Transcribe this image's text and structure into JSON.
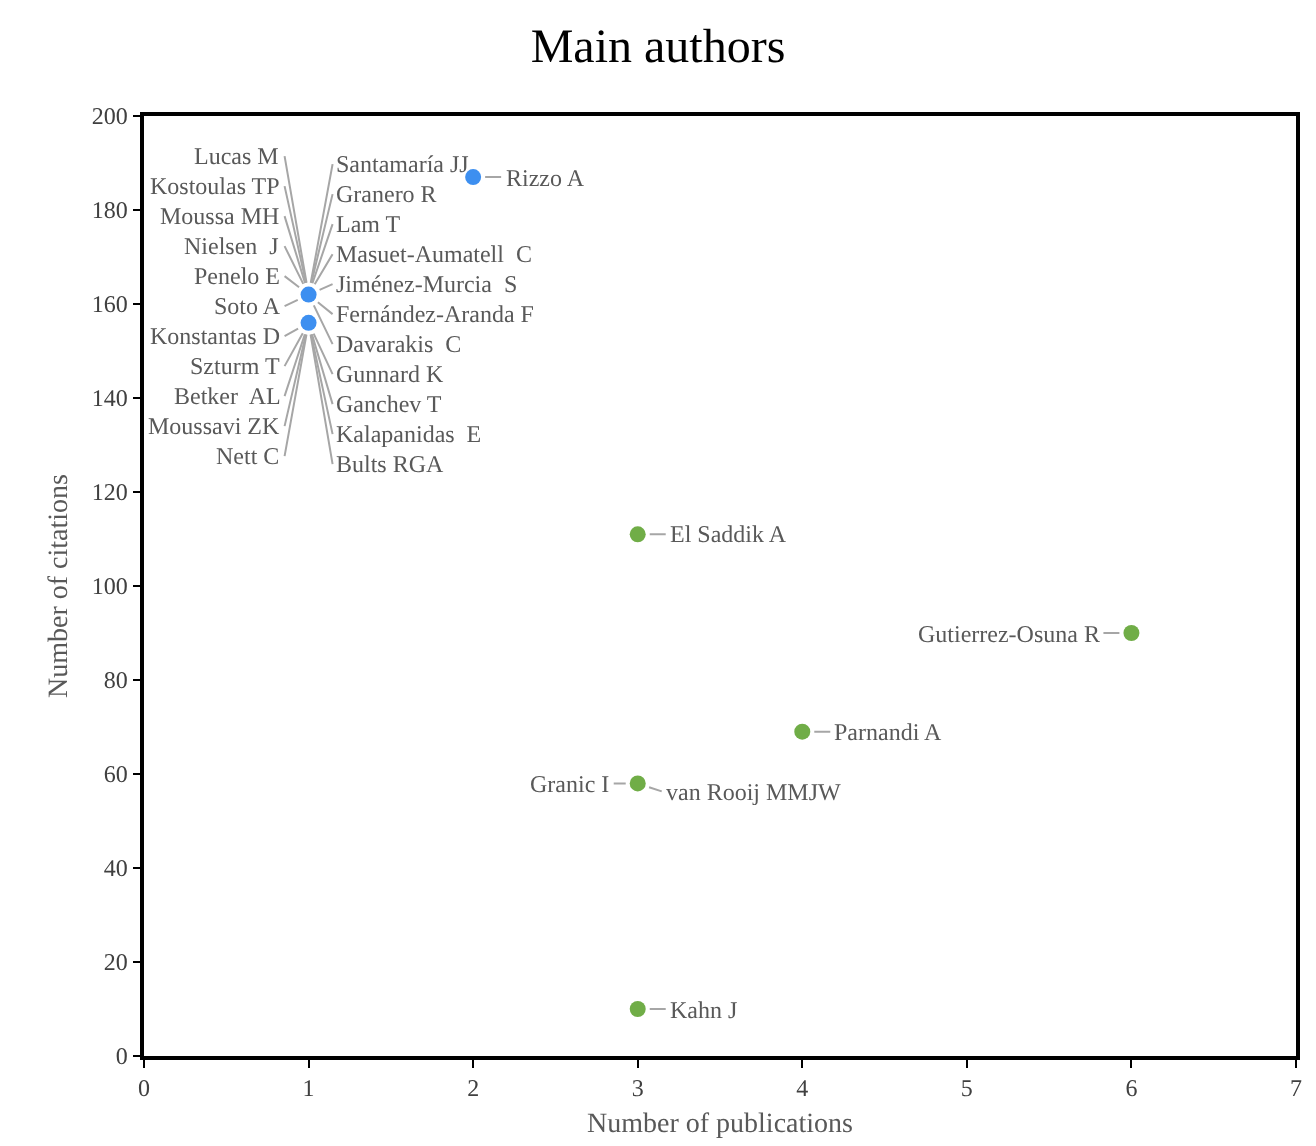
{
  "chart_data": {
    "type": "scatter",
    "title": "Main authors",
    "xlabel": "Number of publications",
    "ylabel": "Number of citations",
    "xlim": [
      0,
      7
    ],
    "xticks": [
      0,
      1,
      2,
      3,
      4,
      5,
      6,
      7
    ],
    "ylim": [
      0,
      200
    ],
    "yticks": [
      0,
      20,
      40,
      60,
      80,
      100,
      120,
      140,
      160,
      180,
      200
    ],
    "grid": false,
    "marker": "circle",
    "series": [
      {
        "color": "#3d8ff0",
        "x": [
          1,
          1,
          2
        ],
        "values": [
          162,
          156,
          187
        ]
      },
      {
        "color": "#70ad47",
        "x": [
          3,
          3,
          6,
          4,
          3
        ],
        "values": [
          111,
          58,
          90,
          69,
          10
        ]
      }
    ],
    "annotations": [
      {
        "text": "Lucas M",
        "x": 1,
        "y": 162
      },
      {
        "text": "Santamaría JJ",
        "x": 1,
        "y": 162
      },
      {
        "text": "Kostoulas TP",
        "x": 1,
        "y": 162
      },
      {
        "text": "Granero R",
        "x": 1,
        "y": 162
      },
      {
        "text": "Moussa MH",
        "x": 1,
        "y": 162
      },
      {
        "text": "Lam T",
        "x": 1,
        "y": 162
      },
      {
        "text": "Nielsen  J",
        "x": 1,
        "y": 162
      },
      {
        "text": "Masuet-Aumatell  C",
        "x": 1,
        "y": 162
      },
      {
        "text": "Penelo E",
        "x": 1,
        "y": 162
      },
      {
        "text": "Jiménez-Murcia  S",
        "x": 1,
        "y": 162
      },
      {
        "text": "Soto A",
        "x": 1,
        "y": 162
      },
      {
        "text": "Fernández-Aranda F",
        "x": 1,
        "y": 162
      },
      {
        "text": "Konstantas D",
        "x": 1,
        "y": 156
      },
      {
        "text": "Davarakis  C",
        "x": 1,
        "y": 162
      },
      {
        "text": "Szturm T",
        "x": 1,
        "y": 156
      },
      {
        "text": "Gunnard K",
        "x": 1,
        "y": 156
      },
      {
        "text": "Betker  AL",
        "x": 1,
        "y": 156
      },
      {
        "text": "Ganchev T",
        "x": 1,
        "y": 156
      },
      {
        "text": "Moussavi ZK",
        "x": 1,
        "y": 156
      },
      {
        "text": "Kalapanidas  E",
        "x": 1,
        "y": 156
      },
      {
        "text": "Nett C",
        "x": 1,
        "y": 156
      },
      {
        "text": "Bults RGA",
        "x": 1,
        "y": 156
      },
      {
        "text": "Rizzo A",
        "x": 2,
        "y": 187
      },
      {
        "text": "El Saddik A",
        "x": 3,
        "y": 111
      },
      {
        "text": "Gutierrez-Osuna R",
        "x": 6,
        "y": 90
      },
      {
        "text": "Parnandi A",
        "x": 4,
        "y": 69
      },
      {
        "text": "Granic I",
        "x": 3,
        "y": 58
      },
      {
        "text": "van Rooij MMJW",
        "x": 3,
        "y": 58
      },
      {
        "text": "Kahn J",
        "x": 3,
        "y": 10
      }
    ]
  }
}
